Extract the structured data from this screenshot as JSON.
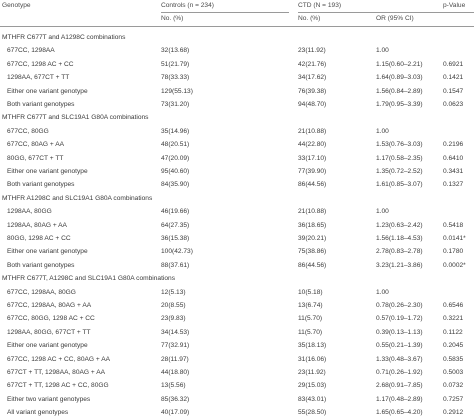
{
  "header": {
    "genotype": "Genotype",
    "controls": "Controls (n = 234)",
    "ctd": "CTD (N = 193)",
    "pvalue": "p-Value",
    "no1": "No. (%)",
    "no2": "No. (%)",
    "or": "OR (95% CI)"
  },
  "rows": [
    {
      "type": "section",
      "label": "MTHFR C677T and A1298C combinations"
    },
    {
      "type": "data",
      "label": "677CC, 1298AA",
      "controls": "32(13.68)",
      "ctd": "23(11.92)",
      "or": "1.00",
      "p": ""
    },
    {
      "type": "data",
      "label": "677CC, 1298 AC + CC",
      "controls": "51(21.79)",
      "ctd": "42(21.76)",
      "or": "1.15(0.60–2.21)",
      "p": "0.6921"
    },
    {
      "type": "data",
      "label": "1298AA, 677CT + TT",
      "controls": "78(33.33)",
      "ctd": "34(17.62)",
      "or": "1.64(0.89–3.03)",
      "p": "0.1421"
    },
    {
      "type": "data",
      "label": "Either one variant genotype",
      "controls": "129(55.13)",
      "ctd": "76(39.38)",
      "or": "1.56(0.84–2.89)",
      "p": "0.1547"
    },
    {
      "type": "data",
      "label": "Both variant genotypes",
      "controls": "73(31.20)",
      "ctd": "94(48.70)",
      "or": "1.79(0.95–3.39)",
      "p": "0.0623"
    },
    {
      "type": "section",
      "label": "MTHFR C677T and SLC19A1 G80A combinations"
    },
    {
      "type": "data",
      "label": "677CC, 80GG",
      "controls": "35(14.96)",
      "ctd": "21(10.88)",
      "or": "1.00",
      "p": ""
    },
    {
      "type": "data",
      "label": "677CC, 80AG + AA",
      "controls": "48(20.51)",
      "ctd": "44(22.80)",
      "or": "1.53(0.76–3.03)",
      "p": "0.2196"
    },
    {
      "type": "data",
      "label": "80GG, 677CT + TT",
      "controls": "47(20.09)",
      "ctd": "33(17.10)",
      "or": "1.17(0.58–2.35)",
      "p": "0.6410"
    },
    {
      "type": "data",
      "label": "Either one variant genotype",
      "controls": "95(40.60)",
      "ctd": "77(39.90)",
      "or": "1.35(0.72–2.52)",
      "p": "0.3431"
    },
    {
      "type": "data",
      "label": "Both variant genotypes",
      "controls": "84(35.90)",
      "ctd": "86(44.56)",
      "or": "1.61(0.85–3.07)",
      "p": "0.1327"
    },
    {
      "type": "section",
      "label": "MTHFR A1298C and SLC19A1 G80A combinations"
    },
    {
      "type": "data",
      "label": "1298AA, 80GG",
      "controls": "46(19.66)",
      "ctd": "21(10.88)",
      "or": "1.00",
      "p": ""
    },
    {
      "type": "data",
      "label": "1298AA, 80AG + AA",
      "controls": "64(27.35)",
      "ctd": "36(18.65)",
      "or": "1.23(0.63–2.42)",
      "p": "0.5418"
    },
    {
      "type": "data",
      "label": "80GG, 1298 AC + CC",
      "controls": "36(15.38)",
      "ctd": "39(20.21)",
      "or": "1.56(1.18–4.53)",
      "p": "0.0141*"
    },
    {
      "type": "data",
      "label": "Either one variant genotype",
      "controls": "100(42.73)",
      "ctd": "75(38.86)",
      "or": "2.78(0.83–2.78)",
      "p": "0.1780"
    },
    {
      "type": "data",
      "label": "Both variant genotypes",
      "controls": "88(37.61)",
      "ctd": "86(44.56)",
      "or": "3.23(1.21–3.86)",
      "p": "0.0002*"
    },
    {
      "type": "section",
      "label": "MTHFR C677T, A1298C and SLC19A1 G80A combinations"
    },
    {
      "type": "data",
      "label": "677CC, 1298AA, 80GG",
      "controls": "12(5.13)",
      "ctd": "10(5.18)",
      "or": "1.00",
      "p": ""
    },
    {
      "type": "data",
      "label": "677CC, 1298AA, 80AG + AA",
      "controls": "20(8.55)",
      "ctd": "13(6.74)",
      "or": "0.78(0.26–2.30)",
      "p": "0.6546"
    },
    {
      "type": "data",
      "label": "677CC, 80GG, 1298 AC + CC",
      "controls": "23(9.83)",
      "ctd": "11(5.70)",
      "or": "0.57(0.19–1.72)",
      "p": "0.3221"
    },
    {
      "type": "data",
      "label": "1298AA, 80GG, 677CT + TT",
      "controls": "34(14.53)",
      "ctd": "11(5.70)",
      "or": "0.39(0.13–1.13)",
      "p": "0.1122"
    },
    {
      "type": "data",
      "label": "Either one variant genotype",
      "controls": "77(32.91)",
      "ctd": "35(18.13)",
      "or": "0.55(0.21–1.39)",
      "p": "0.2045"
    },
    {
      "type": "data",
      "label": "677CC, 1298 AC + CC, 80AG + AA",
      "controls": "28(11.97)",
      "ctd": "31(16.06)",
      "or": "1.33(0.48–3.67)",
      "p": "0.5835"
    },
    {
      "type": "data",
      "label": "677CT + TT, 1298AA, 80AG + AA",
      "controls": "44(18.80)",
      "ctd": "23(11.92)",
      "or": "0.71(0.26–1.92)",
      "p": "0.5003"
    },
    {
      "type": "data",
      "label": "677CT + TT, 1298 AC + CC, 80GG",
      "controls": "13(5.56)",
      "ctd": "29(15.03)",
      "or": "2.68(0.91–7.85)",
      "p": "0.0732"
    },
    {
      "type": "data",
      "label": "Either two variant genotypes",
      "controls": "85(36.32)",
      "ctd": "83(43.01)",
      "or": "1.17(0.48–2.89)",
      "p": "0.7257"
    },
    {
      "type": "data",
      "label": "All variant genotypes",
      "controls": "40(17.09)",
      "ctd": "55(28.50)",
      "or": "1.65(0.65–4.20)",
      "p": "0.2912"
    }
  ]
}
